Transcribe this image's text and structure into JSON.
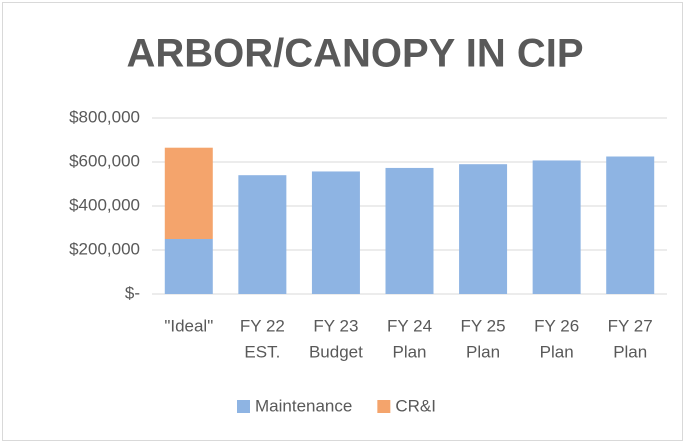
{
  "chart_data": {
    "type": "stacked_bar",
    "title": "ARBOR/CANOPY IN CIP",
    "categories": [
      [
        "\"Ideal\""
      ],
      [
        "FY 22",
        "EST."
      ],
      [
        "FY 23",
        "Budget"
      ],
      [
        "FY 24",
        "Plan"
      ],
      [
        "FY 25",
        "Plan"
      ],
      [
        "FY 26",
        "Plan"
      ],
      [
        "FY 27",
        "Plan"
      ]
    ],
    "series": [
      {
        "name": "Maintenance",
        "color": "#8eb4e3",
        "values": [
          250000,
          540000,
          557000,
          573000,
          590000,
          607000,
          625000
        ]
      },
      {
        "name": "CR&I",
        "color": "#f4a46c",
        "values": [
          415000,
          null,
          null,
          null,
          null,
          null,
          null
        ]
      }
    ],
    "ylim": [
      0,
      800000
    ],
    "yticks": [
      {
        "value": 0,
        "label": "$-"
      },
      {
        "value": 200000,
        "label": "$200,000"
      },
      {
        "value": 400000,
        "label": "$400,000"
      },
      {
        "value": 600000,
        "label": "$600,000"
      },
      {
        "value": 800000,
        "label": "$800,000"
      }
    ],
    "grid": true,
    "legend": "bottom"
  }
}
